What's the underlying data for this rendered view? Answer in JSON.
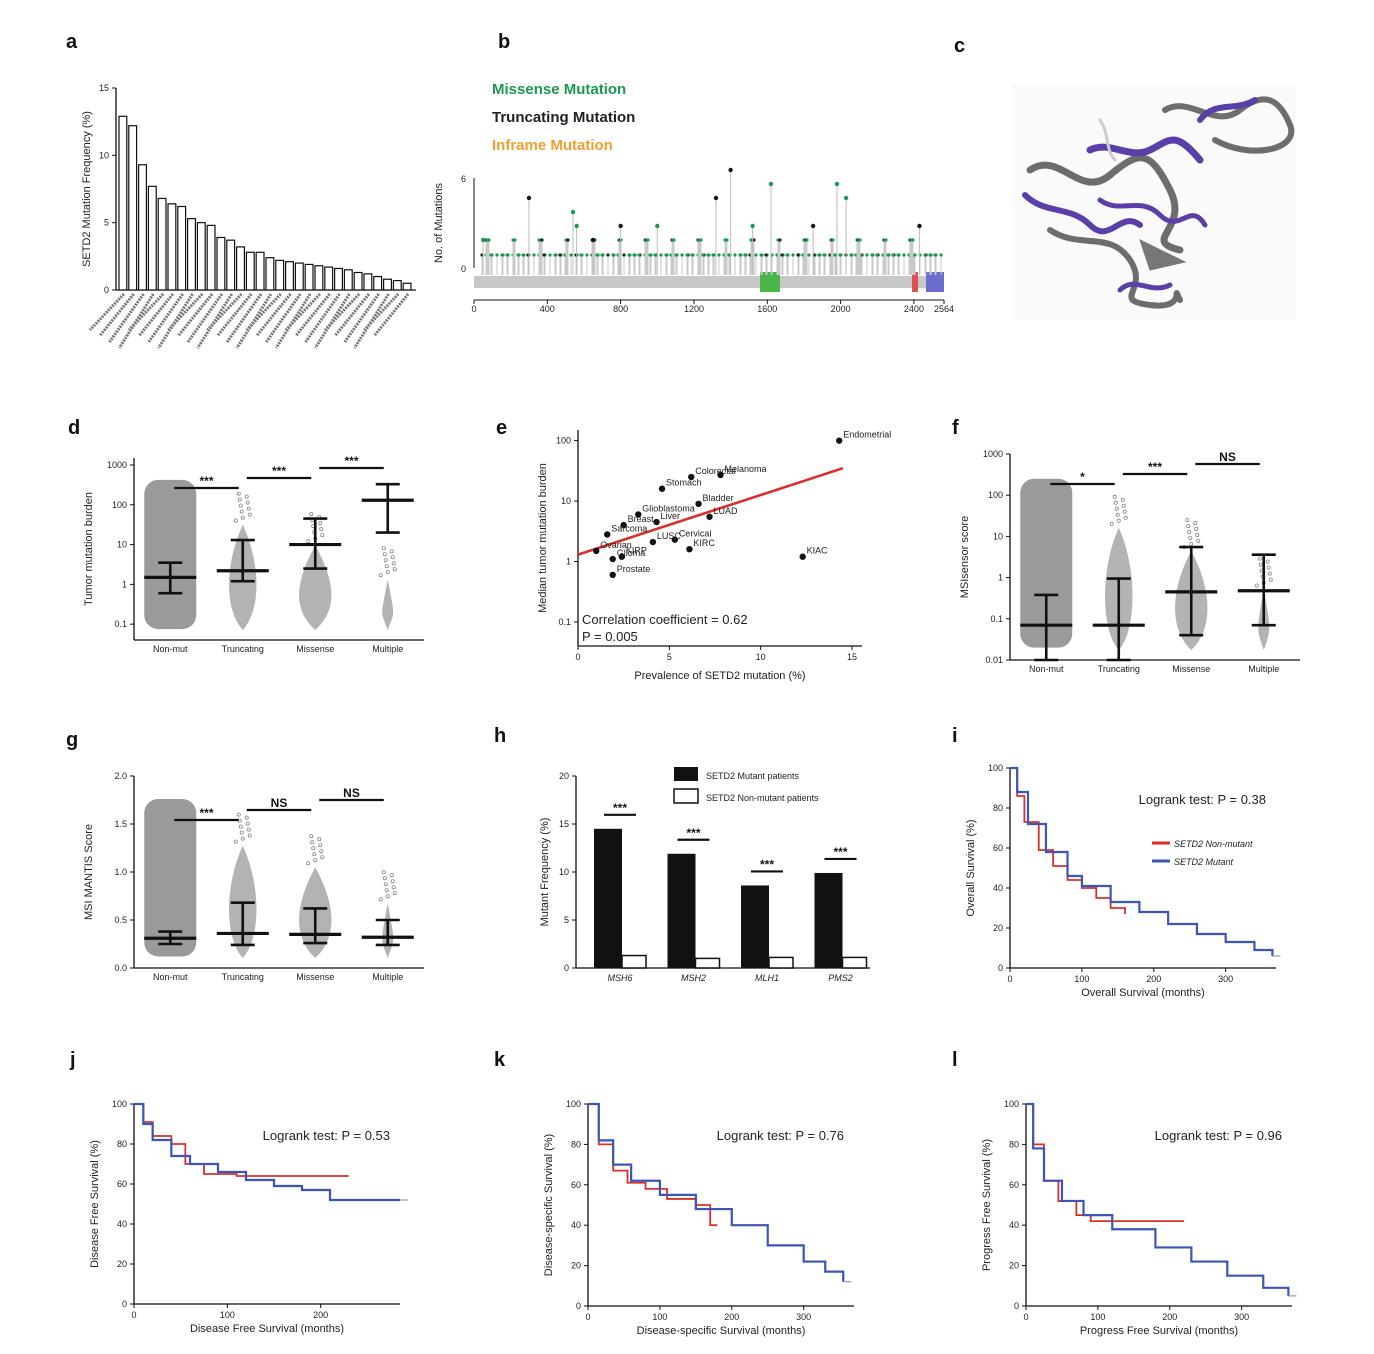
{
  "figure": {
    "panels": [
      "a",
      "b",
      "c",
      "d",
      "e",
      "f",
      "g",
      "h",
      "i",
      "j",
      "k",
      "l"
    ]
  },
  "colors": {
    "green": "#1a9a50",
    "orange": "#f0a030",
    "red": "#d9302c",
    "blue": "#3b55b8",
    "purple": "#5b3fa8",
    "grey": "#9a9a9a",
    "dark": "#111111"
  },
  "chart_data": [
    {
      "panel": "a",
      "type": "bar",
      "ylabel": "SETD2 Mutation Frequency (%)",
      "ylim": [
        0,
        15
      ],
      "yticks": [
        "0",
        "5",
        "10",
        "15"
      ],
      "values": [
        12.9,
        12.2,
        9.3,
        7.7,
        6.8,
        6.4,
        6.2,
        5.3,
        5.0,
        4.8,
        3.9,
        3.7,
        3.2,
        2.8,
        2.8,
        2.4,
        2.2,
        2.1,
        2.0,
        1.9,
        1.8,
        1.7,
        1.6,
        1.5,
        1.3,
        1.2,
        1.0,
        0.8,
        0.7,
        0.5
      ],
      "categories_note": "cancer type labels (illegible)"
    },
    {
      "panel": "b",
      "type": "lollipop",
      "legend": [
        "Missense Mutation",
        "Truncating Mutation",
        "Inframe Mutation"
      ],
      "ylabel": "No. of Mutations",
      "yticks": [
        "0",
        "6"
      ],
      "xticks": [
        "0",
        "400",
        "800",
        "1200",
        "1600",
        "2000",
        "2400",
        "2564"
      ],
      "xlim": [
        0,
        2564
      ],
      "peaks": [
        [
          50,
          2,
          "m"
        ],
        [
          300,
          5,
          "t"
        ],
        [
          540,
          4,
          "m"
        ],
        [
          560,
          3,
          "m"
        ],
        [
          650,
          2,
          "t"
        ],
        [
          800,
          3,
          "t"
        ],
        [
          1000,
          3,
          "m"
        ],
        [
          1320,
          5,
          "t"
        ],
        [
          1400,
          7,
          "t"
        ],
        [
          1520,
          3,
          "m"
        ],
        [
          1620,
          6,
          "m"
        ],
        [
          1850,
          3,
          "t"
        ],
        [
          1980,
          6,
          "m"
        ],
        [
          2030,
          5,
          "m"
        ],
        [
          2430,
          3,
          "t"
        ]
      ]
    },
    {
      "panel": "d",
      "type": "scatter",
      "ylabel": "Tumor mutation burden",
      "yscale": "log",
      "yticks": [
        "0.1",
        "1",
        "10",
        "100",
        "1000"
      ],
      "categories": [
        "Non-mut",
        "Truncating",
        "Missense",
        "Multiple"
      ],
      "medians": [
        1.5,
        2.2,
        10,
        130
      ],
      "lower": [
        0.6,
        1.2,
        2.5,
        20
      ],
      "upper": [
        3.5,
        13,
        45,
        330
      ],
      "stats": [
        "***",
        "***",
        "***"
      ]
    },
    {
      "panel": "e",
      "type": "scatter",
      "xlabel": "Prevalence of SETD2 mutation (%)",
      "ylabel": "Median tumor mutation burden",
      "xticks": [
        "0",
        "5",
        "10",
        "15"
      ],
      "yticks": [
        "0.1",
        "1",
        "10",
        "100"
      ],
      "xlim": [
        0,
        15
      ],
      "ylim_log": [
        0.1,
        150
      ],
      "points": [
        {
          "label": "Endometrial",
          "x": 14.3,
          "y": 100
        },
        {
          "label": "Colorectal",
          "x": 6.2,
          "y": 25
        },
        {
          "label": "Melanoma",
          "x": 7.8,
          "y": 27
        },
        {
          "label": "Stomach",
          "x": 4.6,
          "y": 16
        },
        {
          "label": "Glioblastoma",
          "x": 3.3,
          "y": 6
        },
        {
          "label": "Bladder",
          "x": 6.6,
          "y": 9
        },
        {
          "label": "LUAD",
          "x": 7.2,
          "y": 5.5
        },
        {
          "label": "Breast",
          "x": 2.5,
          "y": 4
        },
        {
          "label": "Liver",
          "x": 4.3,
          "y": 4.5
        },
        {
          "label": "Sarcoma",
          "x": 1.6,
          "y": 2.8
        },
        {
          "label": "Cervical",
          "x": 5.3,
          "y": 2.3
        },
        {
          "label": "LUSC",
          "x": 4.1,
          "y": 2.1
        },
        {
          "label": "Ovarian",
          "x": 1.0,
          "y": 1.5
        },
        {
          "label": "KIRC",
          "x": 6.1,
          "y": 1.6
        },
        {
          "label": "KIRP",
          "x": 2.4,
          "y": 1.2
        },
        {
          "label": "Glioma",
          "x": 1.9,
          "y": 1.1
        },
        {
          "label": "KIAC",
          "x": 12.3,
          "y": 1.2
        },
        {
          "label": "Prostate",
          "x": 1.9,
          "y": 0.6
        }
      ],
      "regression": [
        [
          0,
          1.3
        ],
        [
          14.5,
          35
        ]
      ],
      "annotation_corr": "Correlation coefficient = 0.62",
      "annotation_p": "P = 0.005"
    },
    {
      "panel": "f",
      "type": "scatter",
      "ylabel": "MSIsensor score",
      "yscale": "log",
      "yticks": [
        "0.01",
        "0.1",
        "1",
        "10",
        "100",
        "1000"
      ],
      "categories": [
        "Non-mut",
        "Truncating",
        "Missense",
        "Multiple"
      ],
      "medians": [
        0.07,
        0.07,
        0.45,
        0.48
      ],
      "lower": [
        0.01,
        0.01,
        0.04,
        0.07
      ],
      "upper": [
        0.38,
        0.95,
        5.5,
        3.6
      ],
      "stats": [
        "*",
        "***",
        "NS"
      ]
    },
    {
      "panel": "g",
      "type": "scatter",
      "ylabel": "MSI MANTIS Score",
      "yticks": [
        "0.0",
        "0.5",
        "1.0",
        "1.5",
        "2.0"
      ],
      "ylim": [
        0,
        2
      ],
      "categories": [
        "Non-mut",
        "Truncating",
        "Missense",
        "Multiple"
      ],
      "medians": [
        0.31,
        0.36,
        0.35,
        0.32
      ],
      "lower": [
        0.25,
        0.24,
        0.26,
        0.24
      ],
      "upper": [
        0.38,
        0.68,
        0.62,
        0.5
      ],
      "stats": [
        "***",
        "NS",
        "NS"
      ]
    },
    {
      "panel": "h",
      "type": "bar",
      "ylabel": "Mutant Frequency (%)",
      "ylim": [
        0,
        20
      ],
      "yticks": [
        "0",
        "5",
        "10",
        "15",
        "20"
      ],
      "categories": [
        "MSH6",
        "MSH2",
        "MLH1",
        "PMS2"
      ],
      "series": [
        {
          "name": "SETD2 Mutant patients",
          "values": [
            14.5,
            11.9,
            8.6,
            9.9
          ]
        },
        {
          "name": "SETD2 Non-mutant patients",
          "values": [
            1.3,
            1.0,
            1.1,
            1.1
          ]
        }
      ],
      "stats": [
        "***",
        "***",
        "***",
        "***"
      ]
    },
    {
      "panel": "i",
      "type": "line",
      "xlabel": "Overall Survival (months)",
      "ylabel": "Overall Survival (%)",
      "xticks": [
        "0",
        "100",
        "200",
        "300"
      ],
      "yticks": [
        "0",
        "20",
        "40",
        "60",
        "80",
        "100"
      ],
      "xlim": [
        0,
        370
      ],
      "ylim": [
        0,
        100
      ],
      "test": "Logrank test: P = 0.38",
      "series": [
        {
          "name": "SETD2 Non-mutant",
          "values": [
            [
              0,
              100
            ],
            [
              10,
              86
            ],
            [
              20,
              73
            ],
            [
              40,
              59
            ],
            [
              60,
              51
            ],
            [
              80,
              44
            ],
            [
              100,
              40
            ],
            [
              120,
              35
            ],
            [
              140,
              30
            ],
            [
              160,
              27
            ]
          ]
        },
        {
          "name": "SETD2 Mutant",
          "values": [
            [
              0,
              100
            ],
            [
              10,
              88
            ],
            [
              25,
              72
            ],
            [
              50,
              58
            ],
            [
              80,
              46
            ],
            [
              100,
              41
            ],
            [
              140,
              33
            ],
            [
              180,
              28
            ],
            [
              220,
              22
            ],
            [
              260,
              17
            ],
            [
              300,
              13
            ],
            [
              340,
              9
            ],
            [
              365,
              6
            ]
          ]
        }
      ]
    },
    {
      "panel": "j",
      "type": "line",
      "xlabel": "Disease Free Survival (months)",
      "ylabel": "Disease Free Survival (%)",
      "xticks": [
        "0",
        "100",
        "200"
      ],
      "yticks": [
        "0",
        "20",
        "40",
        "60",
        "80",
        "100"
      ],
      "xlim": [
        0,
        285
      ],
      "ylim": [
        0,
        100
      ],
      "test": "Logrank test: P = 0.53",
      "series": [
        {
          "name": "SETD2 Non-mutant",
          "values": [
            [
              0,
              100
            ],
            [
              10,
              91
            ],
            [
              20,
              84
            ],
            [
              40,
              80
            ],
            [
              55,
              70
            ],
            [
              75,
              65
            ],
            [
              110,
              64
            ],
            [
              230,
              64
            ]
          ]
        },
        {
          "name": "SETD2 Mutant",
          "values": [
            [
              0,
              100
            ],
            [
              10,
              90
            ],
            [
              20,
              82
            ],
            [
              40,
              74
            ],
            [
              60,
              70
            ],
            [
              90,
              66
            ],
            [
              120,
              62
            ],
            [
              150,
              59
            ],
            [
              180,
              57
            ],
            [
              210,
              57
            ],
            [
              210,
              52
            ],
            [
              285,
              52
            ]
          ]
        }
      ]
    },
    {
      "panel": "k",
      "type": "line",
      "xlabel": "Disease-specific Survival (months)",
      "ylabel": "Disease-specific Survival (%)",
      "xticks": [
        "0",
        "100",
        "200",
        "300"
      ],
      "yticks": [
        "0",
        "20",
        "40",
        "60",
        "80",
        "100"
      ],
      "xlim": [
        0,
        370
      ],
      "ylim": [
        0,
        100
      ],
      "test": "Logrank test: P = 0.76",
      "series": [
        {
          "name": "SETD2 Non-mutant",
          "values": [
            [
              0,
              100
            ],
            [
              15,
              80
            ],
            [
              35,
              67
            ],
            [
              55,
              61
            ],
            [
              80,
              58
            ],
            [
              110,
              53
            ],
            [
              150,
              50
            ],
            [
              170,
              40
            ],
            [
              180,
              40
            ]
          ]
        },
        {
          "name": "SETD2 Mutant",
          "values": [
            [
              0,
              100
            ],
            [
              15,
              82
            ],
            [
              35,
              70
            ],
            [
              60,
              62
            ],
            [
              100,
              55
            ],
            [
              150,
              48
            ],
            [
              200,
              40
            ],
            [
              250,
              30
            ],
            [
              300,
              22
            ],
            [
              330,
              17
            ],
            [
              355,
              12
            ]
          ]
        }
      ]
    },
    {
      "panel": "l",
      "type": "line",
      "xlabel": "Progress Free Survival (months)",
      "ylabel": "Progress Free Survival (%)",
      "xticks": [
        "0",
        "100",
        "200",
        "300"
      ],
      "yticks": [
        "0",
        "20",
        "40",
        "60",
        "80",
        "100"
      ],
      "xlim": [
        0,
        370
      ],
      "ylim": [
        0,
        100
      ],
      "test": "Logrank test: P = 0.96",
      "series": [
        {
          "name": "SETD2 Non-mutant",
          "values": [
            [
              0,
              100
            ],
            [
              10,
              80
            ],
            [
              25,
              62
            ],
            [
              45,
              52
            ],
            [
              70,
              45
            ],
            [
              90,
              42
            ],
            [
              220,
              42
            ]
          ]
        },
        {
          "name": "SETD2 Mutant",
          "values": [
            [
              0,
              100
            ],
            [
              10,
              78
            ],
            [
              25,
              62
            ],
            [
              50,
              52
            ],
            [
              80,
              45
            ],
            [
              120,
              38
            ],
            [
              180,
              29
            ],
            [
              230,
              22
            ],
            [
              280,
              15
            ],
            [
              330,
              9
            ],
            [
              365,
              5
            ]
          ]
        }
      ]
    }
  ]
}
